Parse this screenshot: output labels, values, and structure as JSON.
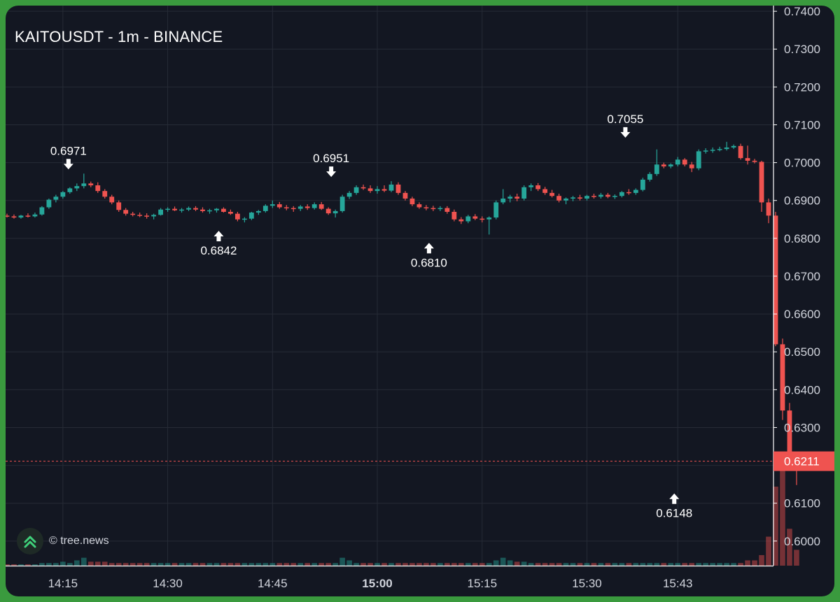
{
  "chart_title": "KAITOUSDT - 1m - BINANCE",
  "watermark": "© tree.news",
  "colors": {
    "background": "#131722",
    "up": "#26a69a",
    "down": "#ef5350",
    "grid": "#262b36",
    "axis_text": "#d1d4dc",
    "frame": "#3a9a3e"
  },
  "chart_data": {
    "type": "candlestick",
    "interval": "1m",
    "ylim": [
      0.5935,
      0.7415
    ],
    "y_ticks": [
      "0.7400",
      "0.7300",
      "0.7200",
      "0.7100",
      "0.7000",
      "0.6900",
      "0.6800",
      "0.6700",
      "0.6600",
      "0.6500",
      "0.6400",
      "0.6300",
      "0.6200",
      "0.6100",
      "0.6000"
    ],
    "x_ticks": [
      {
        "label": "14:15",
        "minute": 855,
        "bold": false
      },
      {
        "label": "14:30",
        "minute": 870,
        "bold": false
      },
      {
        "label": "14:45",
        "minute": 885,
        "bold": false
      },
      {
        "label": "15:00",
        "minute": 900,
        "bold": true
      },
      {
        "label": "15:15",
        "minute": 915,
        "bold": false
      },
      {
        "label": "15:30",
        "minute": 930,
        "bold": false
      },
      {
        "label": "15:43",
        "minute": 943,
        "bold": false
      }
    ],
    "xlim_minutes": [
      846.8,
      956.7
    ],
    "last_price": "0.6211",
    "last_price_value": 0.6211,
    "annotations": [
      {
        "label": "0.6971",
        "minute": 855.8,
        "value": 0.6971,
        "kind": "high"
      },
      {
        "label": "0.6842",
        "minute": 877.3,
        "value": 0.6842,
        "kind": "low"
      },
      {
        "label": "0.6951",
        "minute": 893.4,
        "value": 0.6951,
        "kind": "high"
      },
      {
        "label": "0.6810",
        "minute": 907.4,
        "value": 0.681,
        "kind": "low"
      },
      {
        "label": "0.7055",
        "minute": 935.5,
        "value": 0.7055,
        "kind": "high"
      },
      {
        "label": "0.6148",
        "minute": 942.5,
        "value": 0.6148,
        "kind": "low"
      }
    ],
    "start_time": "14:07",
    "candles": [
      [
        0.686,
        0.6865,
        0.6855,
        0.6858
      ],
      [
        0.6858,
        0.6863,
        0.6852,
        0.6855
      ],
      [
        0.6855,
        0.6862,
        0.6852,
        0.686
      ],
      [
        0.686,
        0.6866,
        0.6855,
        0.6858
      ],
      [
        0.6858,
        0.6868,
        0.6855,
        0.6863
      ],
      [
        0.6863,
        0.6885,
        0.686,
        0.6882
      ],
      [
        0.6882,
        0.6905,
        0.6878,
        0.6902
      ],
      [
        0.6902,
        0.6915,
        0.6895,
        0.691
      ],
      [
        0.691,
        0.6925,
        0.6905,
        0.6922
      ],
      [
        0.6922,
        0.6935,
        0.6918,
        0.6932
      ],
      [
        0.6932,
        0.6945,
        0.6925,
        0.6938
      ],
      [
        0.6938,
        0.6971,
        0.6932,
        0.6945
      ],
      [
        0.6945,
        0.695,
        0.6935,
        0.694
      ],
      [
        0.694,
        0.6948,
        0.692,
        0.6925
      ],
      [
        0.6925,
        0.693,
        0.6905,
        0.691
      ],
      [
        0.691,
        0.6915,
        0.689,
        0.6895
      ],
      [
        0.6895,
        0.69,
        0.687,
        0.6875
      ],
      [
        0.6875,
        0.688,
        0.686,
        0.6865
      ],
      [
        0.6865,
        0.687,
        0.6858,
        0.6862
      ],
      [
        0.6862,
        0.6868,
        0.6856,
        0.686
      ],
      [
        0.686,
        0.6866,
        0.6852,
        0.6858
      ],
      [
        0.6858,
        0.6865,
        0.685,
        0.6862
      ],
      [
        0.6862,
        0.688,
        0.686,
        0.6876
      ],
      [
        0.6876,
        0.6882,
        0.687,
        0.6878
      ],
      [
        0.6878,
        0.6884,
        0.6872,
        0.6874
      ],
      [
        0.6874,
        0.688,
        0.6868,
        0.6876
      ],
      [
        0.6876,
        0.6884,
        0.6872,
        0.688
      ],
      [
        0.688,
        0.6885,
        0.6872,
        0.6876
      ],
      [
        0.6876,
        0.6882,
        0.6868,
        0.6872
      ],
      [
        0.6872,
        0.6878,
        0.6865,
        0.6874
      ],
      [
        0.6874,
        0.688,
        0.6868,
        0.6878
      ],
      [
        0.6878,
        0.6882,
        0.6868,
        0.687
      ],
      [
        0.687,
        0.6876,
        0.6862,
        0.6865
      ],
      [
        0.6865,
        0.687,
        0.6845,
        0.685
      ],
      [
        0.685,
        0.6856,
        0.6842,
        0.6852
      ],
      [
        0.6852,
        0.687,
        0.6848,
        0.6868
      ],
      [
        0.6868,
        0.6875,
        0.6862,
        0.6872
      ],
      [
        0.6872,
        0.689,
        0.6868,
        0.6886
      ],
      [
        0.6886,
        0.69,
        0.688,
        0.689
      ],
      [
        0.689,
        0.6896,
        0.6878,
        0.6882
      ],
      [
        0.6882,
        0.6888,
        0.6874,
        0.688
      ],
      [
        0.688,
        0.6885,
        0.687,
        0.6878
      ],
      [
        0.6878,
        0.6888,
        0.6872,
        0.6884
      ],
      [
        0.6884,
        0.689,
        0.6875,
        0.688
      ],
      [
        0.688,
        0.6895,
        0.6876,
        0.689
      ],
      [
        0.689,
        0.6896,
        0.6875,
        0.6878
      ],
      [
        0.6878,
        0.6882,
        0.6862,
        0.6866
      ],
      [
        0.6866,
        0.6876,
        0.6855,
        0.6872
      ],
      [
        0.6872,
        0.6915,
        0.6868,
        0.691
      ],
      [
        0.691,
        0.6925,
        0.6904,
        0.692
      ],
      [
        0.692,
        0.694,
        0.6915,
        0.6935
      ],
      [
        0.6935,
        0.6942,
        0.6928,
        0.6932
      ],
      [
        0.6932,
        0.694,
        0.692,
        0.6925
      ],
      [
        0.6925,
        0.6938,
        0.6918,
        0.693
      ],
      [
        0.693,
        0.694,
        0.6922,
        0.6926
      ],
      [
        0.6926,
        0.6951,
        0.6922,
        0.6942
      ],
      [
        0.6942,
        0.6948,
        0.6915,
        0.692
      ],
      [
        0.692,
        0.6925,
        0.69,
        0.6905
      ],
      [
        0.6905,
        0.691,
        0.6885,
        0.689
      ],
      [
        0.689,
        0.6895,
        0.6878,
        0.6882
      ],
      [
        0.6882,
        0.6888,
        0.6874,
        0.688
      ],
      [
        0.688,
        0.6886,
        0.6872,
        0.6878
      ],
      [
        0.6878,
        0.6885,
        0.6872,
        0.688
      ],
      [
        0.688,
        0.6885,
        0.6865,
        0.687
      ],
      [
        0.687,
        0.6876,
        0.6845,
        0.685
      ],
      [
        0.685,
        0.6856,
        0.6838,
        0.6845
      ],
      [
        0.6845,
        0.6862,
        0.684,
        0.6858
      ],
      [
        0.6858,
        0.6864,
        0.6848,
        0.6852
      ],
      [
        0.6852,
        0.6858,
        0.6842,
        0.685
      ],
      [
        0.685,
        0.6858,
        0.681,
        0.6855
      ],
      [
        0.6855,
        0.69,
        0.685,
        0.6895
      ],
      [
        0.6895,
        0.693,
        0.689,
        0.6905
      ],
      [
        0.6905,
        0.6915,
        0.6895,
        0.691
      ],
      [
        0.691,
        0.6918,
        0.6898,
        0.6905
      ],
      [
        0.6905,
        0.694,
        0.69,
        0.6935
      ],
      [
        0.6935,
        0.6945,
        0.6925,
        0.694
      ],
      [
        0.694,
        0.6946,
        0.6925,
        0.693
      ],
      [
        0.693,
        0.6936,
        0.6915,
        0.692
      ],
      [
        0.692,
        0.6928,
        0.6908,
        0.6912
      ],
      [
        0.6912,
        0.6918,
        0.6895,
        0.69
      ],
      [
        0.69,
        0.6908,
        0.689,
        0.6905
      ],
      [
        0.6905,
        0.6912,
        0.6898,
        0.6908
      ],
      [
        0.6908,
        0.6915,
        0.69,
        0.6905
      ],
      [
        0.6905,
        0.6915,
        0.69,
        0.6912
      ],
      [
        0.6912,
        0.6918,
        0.6905,
        0.691
      ],
      [
        0.691,
        0.692,
        0.6905,
        0.6915
      ],
      [
        0.6915,
        0.692,
        0.6906,
        0.691
      ],
      [
        0.691,
        0.6916,
        0.6904,
        0.6912
      ],
      [
        0.6912,
        0.6925,
        0.6908,
        0.6922
      ],
      [
        0.6922,
        0.693,
        0.6915,
        0.692
      ],
      [
        0.692,
        0.6932,
        0.6915,
        0.6928
      ],
      [
        0.6928,
        0.696,
        0.6924,
        0.6955
      ],
      [
        0.6955,
        0.6975,
        0.695,
        0.697
      ],
      [
        0.697,
        0.7035,
        0.6965,
        0.6995
      ],
      [
        0.6995,
        0.7,
        0.6985,
        0.699
      ],
      [
        0.699,
        0.6998,
        0.6985,
        0.6995
      ],
      [
        0.6995,
        0.7015,
        0.699,
        0.7008
      ],
      [
        0.7008,
        0.7012,
        0.699,
        0.6995
      ],
      [
        0.6995,
        0.7002,
        0.6975,
        0.6985
      ],
      [
        0.6985,
        0.7035,
        0.698,
        0.703
      ],
      [
        0.703,
        0.7038,
        0.7024,
        0.7032
      ],
      [
        0.7032,
        0.704,
        0.7026,
        0.7034
      ],
      [
        0.7034,
        0.7042,
        0.703,
        0.7036
      ],
      [
        0.7036,
        0.7055,
        0.7032,
        0.704
      ],
      [
        0.704,
        0.7048,
        0.7036,
        0.7044
      ],
      [
        0.7044,
        0.705,
        0.7008,
        0.7012
      ],
      [
        0.7012,
        0.7045,
        0.6995,
        0.7005
      ],
      [
        0.7005,
        0.701,
        0.6998,
        0.7002
      ],
      [
        0.7002,
        0.7005,
        0.687,
        0.6895
      ],
      [
        0.6895,
        0.6905,
        0.684,
        0.686
      ],
      [
        0.686,
        0.687,
        0.6515,
        0.652
      ],
      [
        0.652,
        0.6535,
        0.632,
        0.6345
      ],
      [
        0.6345,
        0.6365,
        0.62,
        0.6225
      ],
      [
        0.6225,
        0.623,
        0.6148,
        0.6211
      ]
    ],
    "volume": [
      0.5,
      0.5,
      0.5,
      0.5,
      0.5,
      1,
      1,
      1,
      1.5,
      1,
      2,
      3,
      1.5,
      1.5,
      1.5,
      1,
      1,
      1,
      1,
      1,
      1,
      1,
      1,
      1,
      1,
      1,
      1,
      1,
      1,
      1,
      1,
      1,
      1,
      1,
      1,
      1,
      1,
      1,
      1,
      1,
      1,
      1,
      1,
      1,
      1,
      1,
      1,
      1,
      3,
      2,
      1,
      1,
      1,
      1,
      1,
      1,
      1,
      1,
      1,
      1,
      1,
      1,
      1,
      1,
      1,
      1,
      1,
      1,
      1,
      1,
      2,
      3,
      2,
      1.5,
      1.5,
      1,
      1,
      1,
      1,
      1,
      1,
      1,
      1,
      1,
      1,
      1,
      1,
      1,
      1,
      1,
      1,
      1,
      1,
      1,
      1,
      1,
      1,
      1,
      1,
      1,
      1,
      1,
      1,
      1,
      1,
      1,
      2,
      2,
      4,
      11,
      30,
      43,
      14,
      6
    ]
  }
}
